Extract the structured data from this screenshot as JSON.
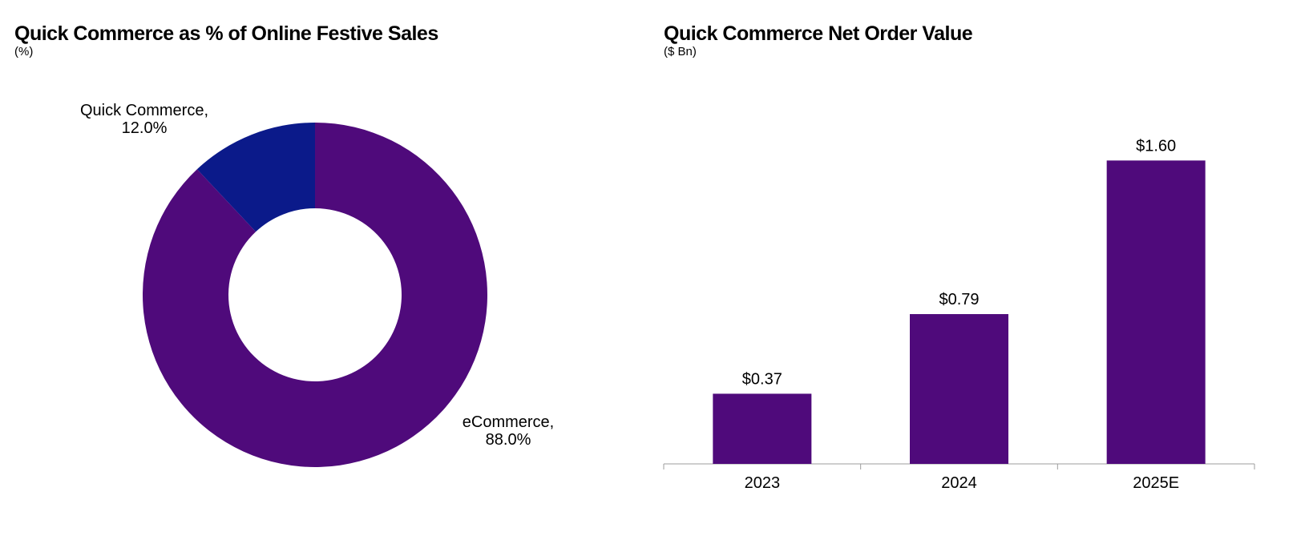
{
  "colors": {
    "primary": "#4f0a7b",
    "secondary": "#0b1a8a",
    "axis": "#9e9e9e"
  },
  "chart_data": [
    {
      "type": "pie",
      "title": "Quick Commerce as % of Online Festive Sales",
      "subtitle": "(%)",
      "donut": true,
      "slices": [
        {
          "label": "Quick Commerce",
          "value": 12.0,
          "display": "12.0%",
          "color": "#0b1a8a"
        },
        {
          "label": "eCommerce",
          "value": 88.0,
          "display": "88.0%",
          "color": "#4f0a7b"
        }
      ]
    },
    {
      "type": "bar",
      "title": "Quick Commerce Net Order Value",
      "subtitle": "($ Bn)",
      "categories": [
        "2023",
        "2024",
        "2025E"
      ],
      "values": [
        0.37,
        0.79,
        1.6
      ],
      "data_labels": [
        "$0.37",
        "$0.79",
        "$1.60"
      ],
      "ylim": [
        0,
        1.8
      ],
      "grid": false,
      "color": "#4f0a7b"
    }
  ]
}
